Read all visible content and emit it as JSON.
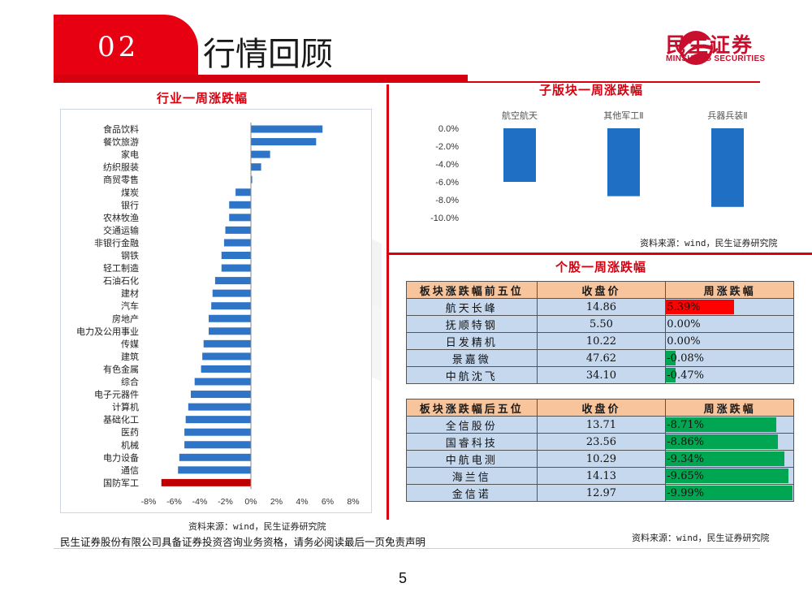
{
  "header": {
    "section_number": "02",
    "title": "行情回顾",
    "logo_cn": "民生证券",
    "logo_en": "MINSHENG SECURITIES"
  },
  "industry_chart": {
    "title": "行业一周涨跌幅",
    "source": "资料来源：wind，民生证券研究院"
  },
  "sub_chart": {
    "title": "子版块一周涨跌幅",
    "source": "资料来源：wind，民生证券研究院"
  },
  "stocks": {
    "title": "个股一周涨跌幅",
    "source": "资料来源：wind，民生证券研究院",
    "top_headers": [
      "板块涨跌幅前五位",
      "收盘价",
      "周涨跌幅"
    ],
    "top_rows": [
      {
        "name": "航天长峰",
        "close": "14.86",
        "change": "5.39%",
        "value": 5.39
      },
      {
        "name": "抚顺特钢",
        "close": "5.50",
        "change": "0.00%",
        "value": 0.0
      },
      {
        "name": "日发精机",
        "close": "10.22",
        "change": "0.00%",
        "value": 0.0
      },
      {
        "name": "景嘉微",
        "close": "47.62",
        "change": "-0.08%",
        "value": -0.08
      },
      {
        "name": "中航沈飞",
        "close": "34.10",
        "change": "-0.47%",
        "value": -0.47
      }
    ],
    "bottom_headers": [
      "板块涨跌幅后五位",
      "收盘价",
      "周涨跌幅"
    ],
    "bottom_rows": [
      {
        "name": "全信股份",
        "close": "13.71",
        "change": "-8.71%",
        "value": -8.71
      },
      {
        "name": "国睿科技",
        "close": "23.56",
        "change": "-8.86%",
        "value": -8.86
      },
      {
        "name": "中航电测",
        "close": "10.29",
        "change": "-9.34%",
        "value": -9.34
      },
      {
        "name": "海兰信",
        "close": "14.13",
        "change": "-9.65%",
        "value": -9.65
      },
      {
        "name": "金信诺",
        "close": "12.97",
        "change": "-9.99%",
        "value": -9.99
      }
    ],
    "positive_color": "#ff0000",
    "negative_color": "#00a651"
  },
  "footer": {
    "disclaimer": "民生证券股份有限公司具备证券投资咨询业务资格，请务必阅读最后一页免责声明",
    "page_number": "5"
  },
  "chart_data": [
    {
      "type": "bar",
      "orientation": "horizontal",
      "title": "行业一周涨跌幅",
      "categories": [
        "食品饮料",
        "餐饮旅游",
        "家电",
        "纺织服装",
        "商贸零售",
        "煤炭",
        "银行",
        "农林牧渔",
        "交通运输",
        "非银行金融",
        "钢铁",
        "轻工制造",
        "石油石化",
        "建材",
        "汽车",
        "房地产",
        "电力及公用事业",
        "传媒",
        "建筑",
        "有色金属",
        "综合",
        "电子元器件",
        "计算机",
        "基础化工",
        "医药",
        "机械",
        "电力设备",
        "通信",
        "国防军工"
      ],
      "values": [
        5.6,
        5.1,
        1.5,
        0.8,
        0.1,
        -1.2,
        -1.7,
        -1.7,
        -2.0,
        -2.1,
        -2.3,
        -2.3,
        -2.8,
        -3.0,
        -3.1,
        -3.3,
        -3.3,
        -3.7,
        -3.8,
        -3.9,
        -4.4,
        -4.7,
        -4.9,
        -5.1,
        -5.2,
        -5.2,
        -5.6,
        -5.7,
        -7.0
      ],
      "tick_labels": [
        "-8%",
        "-6%",
        "-4%",
        "-2%",
        "0%",
        "2%",
        "4%",
        "6%",
        "8%"
      ],
      "xlim": [
        -8,
        8
      ],
      "bar_color": "#2e75c8",
      "highlight_category": "国防军工",
      "highlight_color": "#c00000",
      "grid": false
    },
    {
      "type": "bar",
      "title": "子版块一周涨跌幅",
      "categories": [
        "航空航天",
        "其他军工Ⅱ",
        "兵器兵装Ⅱ"
      ],
      "values": [
        -6.0,
        -7.6,
        -8.8
      ],
      "tick_labels": [
        "0.0%",
        "-2.0%",
        "-4.0%",
        "-6.0%",
        "-8.0%",
        "-10.0%"
      ],
      "ylim": [
        -10,
        0
      ],
      "bar_color": "#1f6fc5",
      "grid": false
    }
  ]
}
